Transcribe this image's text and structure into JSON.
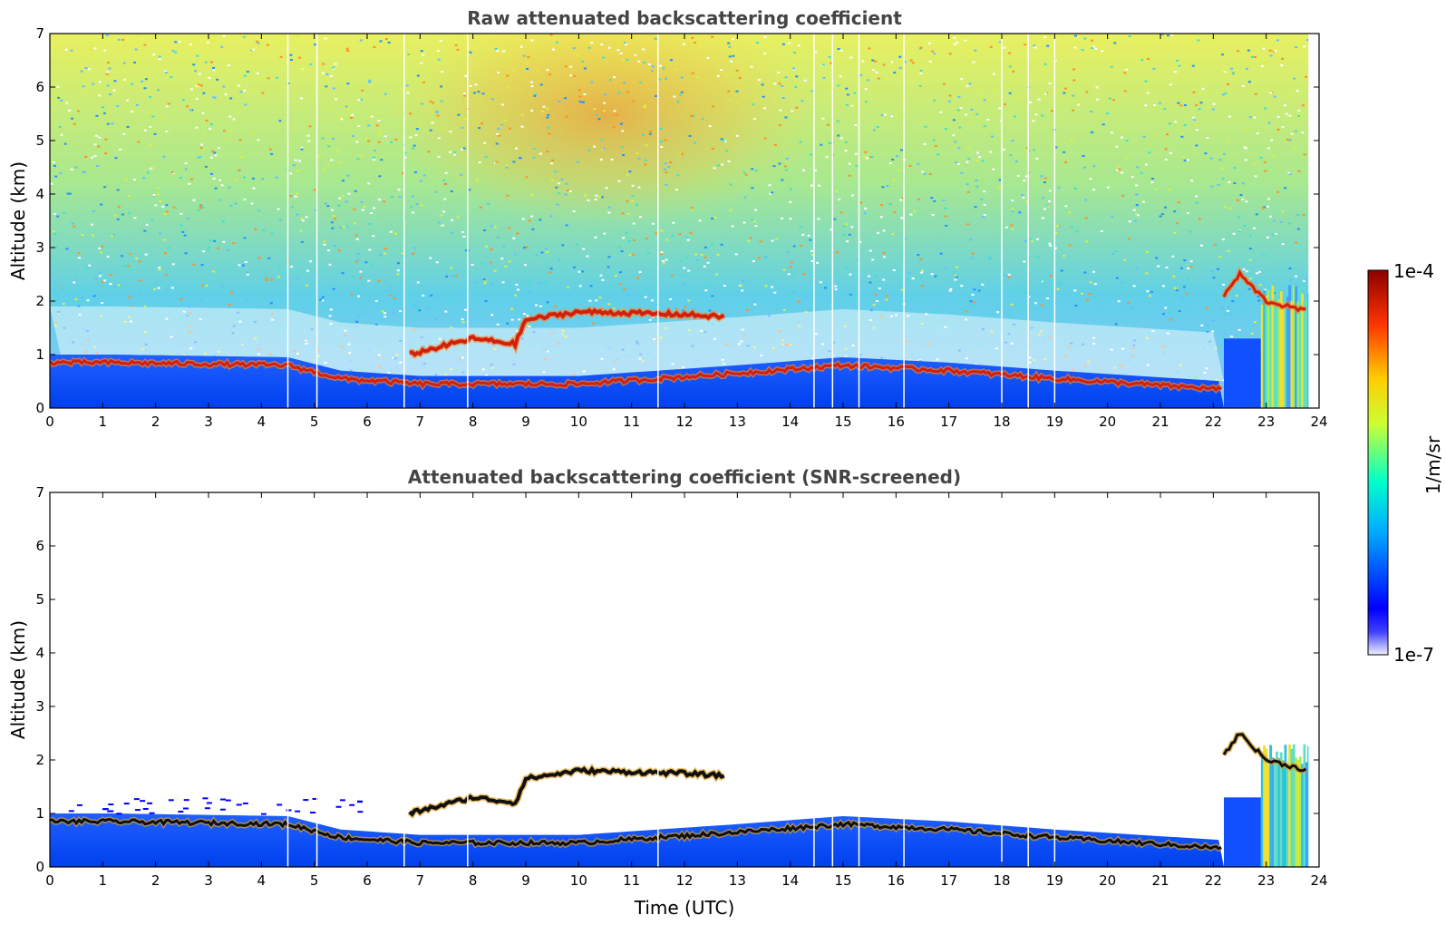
{
  "chart_data": [
    {
      "type": "heatmap",
      "title": "Raw attenuated backscattering coefficient",
      "xlabel": "",
      "ylabel": "Altitude (km)",
      "xlim": [
        0,
        24
      ],
      "ylim": [
        0,
        7
      ],
      "xticks": [
        0,
        1,
        2,
        3,
        4,
        5,
        6,
        7,
        8,
        9,
        10,
        11,
        12,
        13,
        14,
        15,
        16,
        17,
        18,
        19,
        20,
        21,
        22,
        23,
        24
      ],
      "yticks": [
        0,
        1,
        2,
        3,
        4,
        5,
        6,
        7
      ],
      "grid": false,
      "data_end_hour": 23.8,
      "gap_hours": [
        4.5,
        5.05,
        6.7,
        7.9,
        11.5,
        14.45,
        14.8,
        15.3,
        16.15,
        18.0,
        18.5,
        19.0
      ],
      "layers": {
        "boundary_layer_top_km": [
          {
            "t": 0,
            "h": 1.0
          },
          {
            "t": 1.2,
            "h": 1.0
          },
          {
            "t": 4.5,
            "h": 0.95
          },
          {
            "t": 5.5,
            "h": 0.7
          },
          {
            "t": 7,
            "h": 0.6
          },
          {
            "t": 10,
            "h": 0.6
          },
          {
            "t": 13,
            "h": 0.8
          },
          {
            "t": 15,
            "h": 0.95
          },
          {
            "t": 17,
            "h": 0.85
          },
          {
            "t": 19,
            "h": 0.7
          },
          {
            "t": 22.2,
            "h": 0.5
          }
        ],
        "elevated_layer_km": [
          {
            "t": 6.8,
            "h": 1.0
          },
          {
            "t": 8,
            "h": 1.3
          },
          {
            "t": 8.8,
            "h": 1.2
          },
          {
            "t": 9,
            "h": 1.65
          },
          {
            "t": 10,
            "h": 1.8
          },
          {
            "t": 12,
            "h": 1.75
          },
          {
            "t": 12.8,
            "h": 1.7
          }
        ],
        "evening_layer_km": [
          {
            "t": 22.2,
            "h": 2.1
          },
          {
            "t": 22.5,
            "h": 2.5
          },
          {
            "t": 23,
            "h": 2.0
          },
          {
            "t": 23.8,
            "h": 1.8
          }
        ]
      }
    },
    {
      "type": "heatmap",
      "title": "Attenuated backscattering coefficient (SNR-screened)",
      "xlabel": "Time (UTC)",
      "ylabel": "Altitude (km)",
      "xlim": [
        0,
        24
      ],
      "ylim": [
        0,
        7
      ],
      "xticks": [
        0,
        1,
        2,
        3,
        4,
        5,
        6,
        7,
        8,
        9,
        10,
        11,
        12,
        13,
        14,
        15,
        16,
        17,
        18,
        19,
        20,
        21,
        22,
        23,
        24
      ],
      "yticks": [
        0,
        1,
        2,
        3,
        4,
        5,
        6,
        7
      ],
      "grid": false,
      "data_end_hour": 23.8
    }
  ],
  "colorbar": {
    "label": "1/m/sr",
    "max_label": "1e-4",
    "min_label": "1e-7",
    "min_value": 1e-07,
    "max_value": 0.0001,
    "scale": "log",
    "colormap": "jet"
  },
  "colors": {
    "title": "#444444",
    "background": "#ffffff",
    "jet_stops": [
      "#f0f0ff",
      "#0000ff",
      "#00aaff",
      "#00ffcc",
      "#ccff33",
      "#ffcc00",
      "#ff3300",
      "#8b0000"
    ]
  }
}
